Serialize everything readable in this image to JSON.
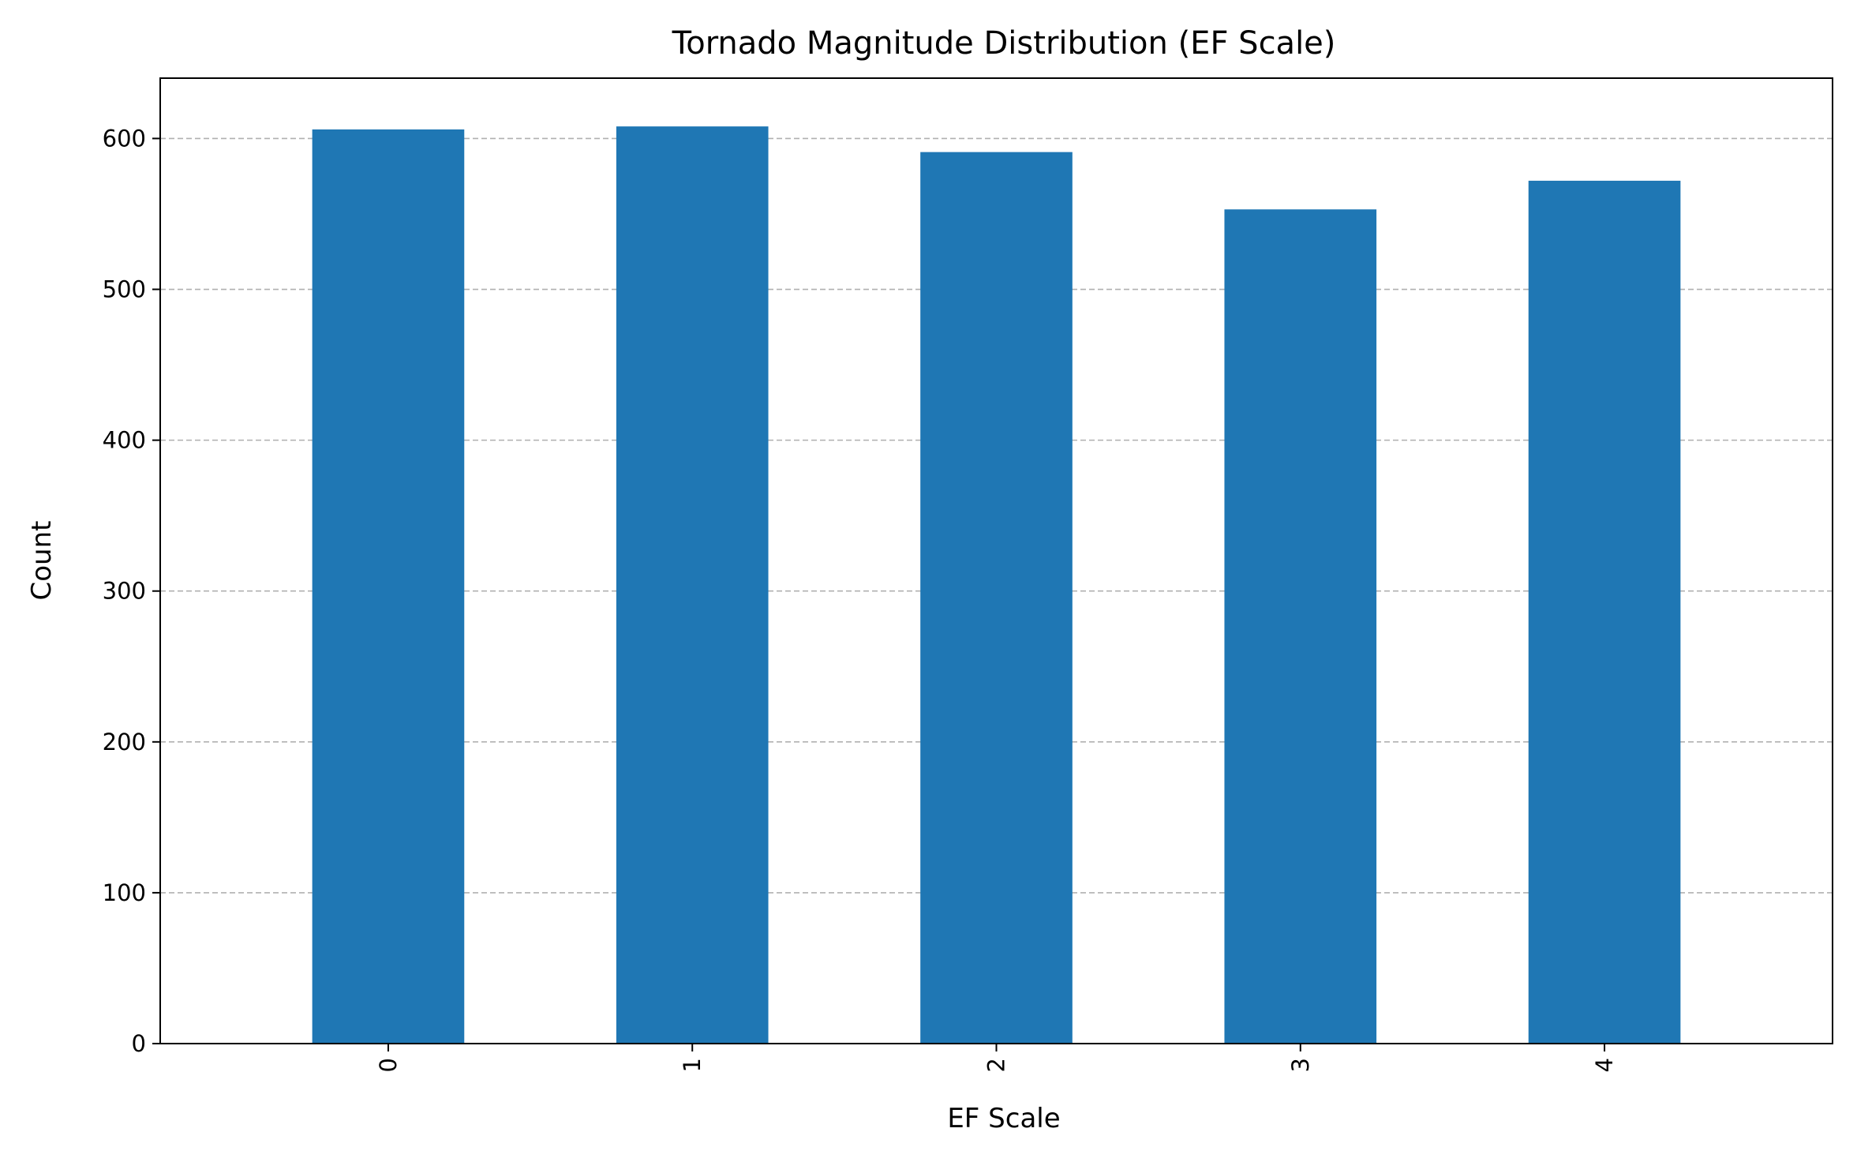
{
  "chart_data": {
    "type": "bar",
    "title": "Tornado Magnitude Distribution (EF Scale)",
    "xlabel": "EF Scale",
    "ylabel": "Count",
    "categories": [
      "0",
      "1",
      "2",
      "3",
      "4"
    ],
    "values": [
      606,
      608,
      591,
      553,
      572
    ],
    "ylim": [
      0,
      640
    ],
    "yticks": [
      0,
      100,
      200,
      300,
      400,
      500,
      600
    ],
    "ytick_labels": [
      "0",
      "100",
      "200",
      "300",
      "400",
      "500",
      "600"
    ],
    "grid": "horizontal dashed",
    "bar_color": "#1f77b4",
    "grid_color": "#b0b0b0",
    "xtick_rotation": "vertical"
  }
}
